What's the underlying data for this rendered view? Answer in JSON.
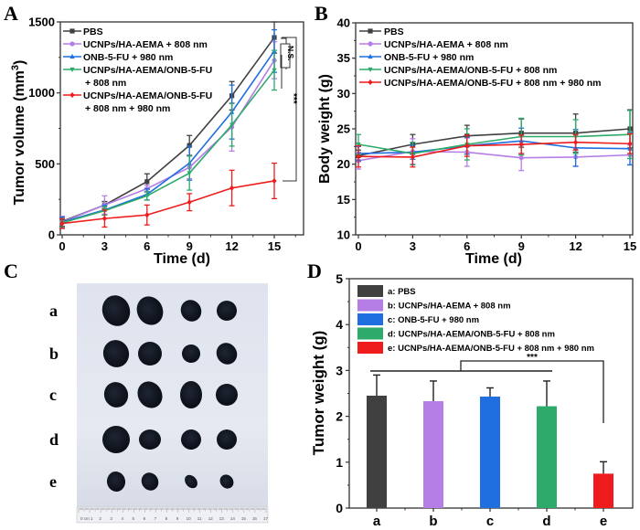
{
  "panels": {
    "A": {
      "letter": "A"
    },
    "B": {
      "letter": "B"
    },
    "C": {
      "letter": "C"
    },
    "D": {
      "letter": "D"
    }
  },
  "photo": {
    "row_labels": [
      "a",
      "b",
      "c",
      "d",
      "e"
    ],
    "ruler_labels": [
      "0 cm 1",
      "2",
      "3",
      "4",
      "5",
      "6",
      "7",
      "8",
      "9",
      "10",
      "11",
      "12",
      "13",
      "14",
      "15",
      "16",
      "17"
    ]
  },
  "chart_data": [
    {
      "id": "A",
      "type": "line",
      "title": "",
      "xlabel": "Time (d)",
      "ylabel": "Tumor volume (mm³)",
      "ylabel_base": "Tumor volume (mm",
      "ylabel_sup": "3",
      "ylabel_close": ")",
      "x": [
        0,
        3,
        6,
        9,
        12,
        15
      ],
      "xlim": [
        -0.3,
        17.2
      ],
      "ylim": [
        0,
        1500
      ],
      "xticks": [
        "0",
        "3",
        "6",
        "9",
        "12",
        "15"
      ],
      "yticks": [
        "0",
        "500",
        "1000",
        "1500"
      ],
      "ytick_values": [
        0,
        500,
        1000,
        1500
      ],
      "legend": "top-left",
      "series": [
        {
          "name": "PBS",
          "legend_lines": [
            "PBS"
          ],
          "color": "#404040",
          "marker": "square",
          "values": [
            95,
            210,
            375,
            630,
            980,
            1390
          ],
          "errors": [
            35,
            25,
            55,
            70,
            100,
            110
          ]
        },
        {
          "name": "UCNPs/HA-AEMA + 808 nm",
          "legend_lines": [
            "UCNPs/HA-AEMA + 808 nm"
          ],
          "color": "#b57ee6",
          "marker": "circle",
          "values": [
            90,
            210,
            325,
            475,
            760,
            1230
          ],
          "errors": [
            40,
            65,
            25,
            80,
            170,
            130
          ]
        },
        {
          "name": "ONB-5-FU + 980 nm",
          "legend_lines": [
            "ONB-5-FU + 980 nm"
          ],
          "color": "#1f6fe0",
          "marker": "triangle-up",
          "values": [
            90,
            175,
            285,
            505,
            865,
            1295
          ],
          "errors": [
            35,
            35,
            40,
            120,
            190,
            150
          ]
        },
        {
          "name": "UCNPs/HA-AEMA/ONB-5-FU + 808 nm",
          "legend_lines": [
            "UCNPs/HA-AEMA/ONB-5-FU",
            "+ 808 nm"
          ],
          "color": "#2eaa6a",
          "marker": "triangle-down",
          "values": [
            85,
            170,
            275,
            435,
            775,
            1160
          ],
          "errors": [
            30,
            30,
            30,
            120,
            150,
            140
          ]
        },
        {
          "name": "UCNPs/HA-AEMA/ONB-5-FU + 808 nm + 980 nm",
          "legend_lines": [
            "UCNPs/HA-AEMA/ONB-5-FU",
            "+ 808 nm + 980 nm"
          ],
          "color": "#ee1c1c",
          "marker": "diamond",
          "values": [
            80,
            115,
            140,
            230,
            330,
            380
          ],
          "errors": [
            35,
            60,
            70,
            60,
            125,
            125
          ]
        }
      ],
      "annotations": [
        {
          "text": "N.S.",
          "between": "first four groups at day 15"
        },
        {
          "text": "***",
          "between": "all groups vs UCNPs/HA-AEMA/ONB-5-FU + 808 nm + 980 nm at day 15"
        }
      ]
    },
    {
      "id": "B",
      "type": "line",
      "title": "",
      "xlabel": "Time (d)",
      "ylabel": "Body weight (g)",
      "x": [
        0,
        3,
        6,
        9,
        12,
        15
      ],
      "xlim": [
        -0.2,
        15.2
      ],
      "ylim": [
        10,
        40
      ],
      "xticks": [
        "0",
        "3",
        "6",
        "9",
        "12",
        "15"
      ],
      "yticks": [
        "10",
        "15",
        "20",
        "25",
        "30",
        "35",
        "40"
      ],
      "ytick_values": [
        10,
        15,
        20,
        25,
        30,
        35,
        40
      ],
      "legend": "top-left",
      "series": [
        {
          "name": "PBS",
          "color": "#404040",
          "marker": "square",
          "values": [
            21.2,
            22.8,
            24.0,
            24.4,
            24.4,
            25.0
          ],
          "errors": [
            0.8,
            1.4,
            1.5,
            2.0,
            2.7,
            2.7
          ]
        },
        {
          "name": "UCNPs/HA-AEMA + 808 nm",
          "color": "#b57ee6",
          "marker": "circle",
          "values": [
            20.5,
            21.8,
            21.7,
            20.9,
            21.0,
            21.3
          ],
          "errors": [
            1.2,
            1.8,
            2.0,
            1.8,
            1.3,
            1.4
          ]
        },
        {
          "name": "ONB-5-FU + 980 nm",
          "color": "#1f6fe0",
          "marker": "triangle-up",
          "values": [
            21.5,
            21.7,
            22.6,
            23.3,
            22.3,
            22.2
          ],
          "errors": [
            1.0,
            1.0,
            1.2,
            1.8,
            2.6,
            2.3
          ]
        },
        {
          "name": "UCNPs/HA-AEMA/ONB-5-FU + 808 nm",
          "color": "#2eaa6a",
          "marker": "triangle-down",
          "values": [
            22.8,
            21.5,
            22.8,
            23.9,
            23.9,
            24.2
          ],
          "errors": [
            1.4,
            1.6,
            2.2,
            2.6,
            2.4,
            3.4
          ]
        },
        {
          "name": "UCNPs/HA-AEMA/ONB-5-FU + 808 nm + 980 nm",
          "color": "#ee1c1c",
          "marker": "diamond",
          "values": [
            21.1,
            21.0,
            22.6,
            22.8,
            23.1,
            22.9
          ],
          "errors": [
            1.5,
            1.4,
            1.5,
            1.3,
            1.1,
            1.4
          ]
        }
      ]
    },
    {
      "id": "D",
      "type": "bar",
      "title": "",
      "xlabel": "",
      "ylabel": "Tumor weight (g)",
      "categories": [
        "a",
        "b",
        "c",
        "d",
        "e"
      ],
      "ylim": [
        0,
        5
      ],
      "yticks": [
        "0",
        "1",
        "2",
        "3",
        "4",
        "5"
      ],
      "ytick_values": [
        0,
        1,
        2,
        3,
        4,
        5
      ],
      "legend": "top-left",
      "series": [
        {
          "name": "values",
          "values": [
            2.45,
            2.33,
            2.43,
            2.22,
            0.75
          ],
          "errors": [
            0.45,
            0.44,
            0.19,
            0.55,
            0.26
          ],
          "colors": [
            "#404040",
            "#b57ee6",
            "#1f6fe0",
            "#2eaa6a",
            "#ee1c1c"
          ]
        }
      ],
      "legend_entries": [
        "a: PBS",
        "b: UCNPs/HA-AEMA + 808 nm",
        "c: ONB-5-FU + 980 nm",
        "d: UCNPs/HA-AEMA/ONB-5-FU + 808 nm",
        "e: UCNPs/HA-AEMA/ONB-5-FU + 808 nm + 980 nm"
      ],
      "annotations": [
        {
          "text": "***",
          "between": "a–d vs e"
        }
      ]
    }
  ]
}
